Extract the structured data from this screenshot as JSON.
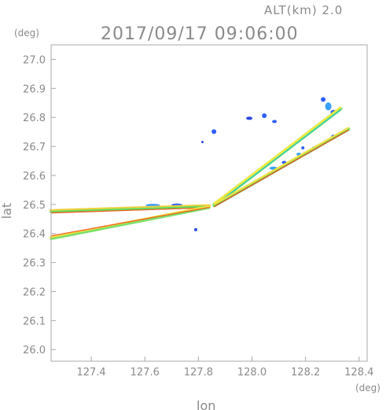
{
  "chart_data": {
    "type": "scatter",
    "title": "2017/09/17 09:06:00",
    "subtitle": "ALT(km) 2.0",
    "xlabel": "lon",
    "ylabel": "lat",
    "x_unit": "(deg)",
    "y_unit": "(deg)",
    "xlim": [
      127.25,
      128.43
    ],
    "ylim": [
      25.96,
      27.05
    ],
    "xticks": [
      127.4,
      127.6,
      127.8,
      128.0,
      128.2,
      128.4
    ],
    "xtick_labels": [
      "127.4",
      "127.6",
      "127.8",
      "128.0",
      "128.2",
      "128.4"
    ],
    "yticks": [
      26.0,
      26.1,
      26.2,
      26.3,
      26.4,
      26.5,
      26.6,
      26.7,
      26.8,
      26.9,
      27.0
    ],
    "ytick_labels": [
      "26.0",
      "26.1",
      "26.2",
      "26.3",
      "26.4",
      "26.5",
      "26.6",
      "26.7",
      "26.8",
      "26.9",
      "27.0"
    ],
    "grid": false,
    "legend": "none",
    "center": [
      127.85,
      26.495
    ],
    "series": [
      {
        "x": [
          127.25,
          127.84
        ],
        "y": [
          26.478,
          26.495
        ],
        "color": "#f0d040",
        "width": 4.5
      },
      {
        "x": [
          127.25,
          127.84
        ],
        "y": [
          26.474,
          26.492
        ],
        "color": "#5fe05f",
        "width": 3
      },
      {
        "x": [
          127.25,
          127.84
        ],
        "y": [
          26.471,
          26.489
        ],
        "color": "#f05a20",
        "width": 1.3
      },
      {
        "x": [
          127.25,
          127.84
        ],
        "y": [
          26.385,
          26.492
        ],
        "color": "#f2e040",
        "width": 4
      },
      {
        "x": [
          127.25,
          127.84
        ],
        "y": [
          26.381,
          26.488
        ],
        "color": "#7ae06a",
        "width": 2.6
      },
      {
        "x": [
          127.25,
          127.84
        ],
        "y": [
          26.392,
          26.49
        ],
        "color": "#f05a20",
        "width": 1.2
      },
      {
        "x": [
          127.86,
          128.33
        ],
        "y": [
          26.5,
          26.83
        ],
        "color": "#6ee06e",
        "width": 5
      },
      {
        "x": [
          127.86,
          128.33
        ],
        "y": [
          26.504,
          26.834
        ],
        "color": "#f2ea40",
        "width": 2.5
      },
      {
        "x": [
          127.86,
          128.33
        ],
        "y": [
          26.497,
          26.826
        ],
        "color": "#30c8c0",
        "width": 1.2
      },
      {
        "x": [
          127.86,
          128.36
        ],
        "y": [
          26.497,
          26.76
        ],
        "color": "#5fe05f",
        "width": 4.5
      },
      {
        "x": [
          127.86,
          128.36
        ],
        "y": [
          26.501,
          26.764
        ],
        "color": "#f2e040",
        "width": 2.2
      },
      {
        "x": [
          127.86,
          128.36
        ],
        "y": [
          26.493,
          26.756
        ],
        "color": "#f04a20",
        "width": 1.2
      }
    ],
    "echoes": [
      {
        "x": 128.266,
        "y": 26.862,
        "rx": 3,
        "ry": 3,
        "color": "#2f5fff"
      },
      {
        "x": 128.285,
        "y": 26.838,
        "rx": 4,
        "ry": 5,
        "color": "#3aa0ff"
      },
      {
        "x": 128.305,
        "y": 26.818,
        "rx": 4,
        "ry": 3,
        "color": "#3060f0"
      },
      {
        "x": 128.046,
        "y": 26.806,
        "rx": 3,
        "ry": 3,
        "color": "#2f5fff"
      },
      {
        "x": 127.99,
        "y": 26.797,
        "rx": 4,
        "ry": 2,
        "color": "#2848e0"
      },
      {
        "x": 128.084,
        "y": 26.786,
        "rx": 3,
        "ry": 2,
        "color": "#3060f0"
      },
      {
        "x": 127.858,
        "y": 26.751,
        "rx": 3,
        "ry": 3,
        "color": "#2f5fff"
      },
      {
        "x": 127.815,
        "y": 26.715,
        "rx": 1.5,
        "ry": 1.5,
        "color": "#2848e0"
      },
      {
        "x": 128.19,
        "y": 26.695,
        "rx": 2,
        "ry": 2,
        "color": "#3060f0"
      },
      {
        "x": 128.235,
        "y": 26.695,
        "rx": 4,
        "ry": 2,
        "color": "#3aa0ff"
      },
      {
        "x": 128.305,
        "y": 26.735,
        "rx": 3,
        "ry": 2,
        "color": "#2f5fff"
      },
      {
        "x": 128.08,
        "y": 26.625,
        "rx": 5,
        "ry": 2,
        "color": "#3aa0ff"
      },
      {
        "x": 128.12,
        "y": 26.645,
        "rx": 3,
        "ry": 2,
        "color": "#2f5fff"
      },
      {
        "x": 127.63,
        "y": 26.497,
        "rx": 9,
        "ry": 2,
        "color": "#3aa0ff"
      },
      {
        "x": 127.72,
        "y": 26.498,
        "rx": 7,
        "ry": 2,
        "color": "#2f5fff"
      },
      {
        "x": 127.79,
        "y": 26.413,
        "rx": 2,
        "ry": 2,
        "color": "#2848e0"
      },
      {
        "x": 128.175,
        "y": 26.673,
        "rx": 3,
        "ry": 2,
        "color": "#3aa0ff"
      }
    ]
  }
}
